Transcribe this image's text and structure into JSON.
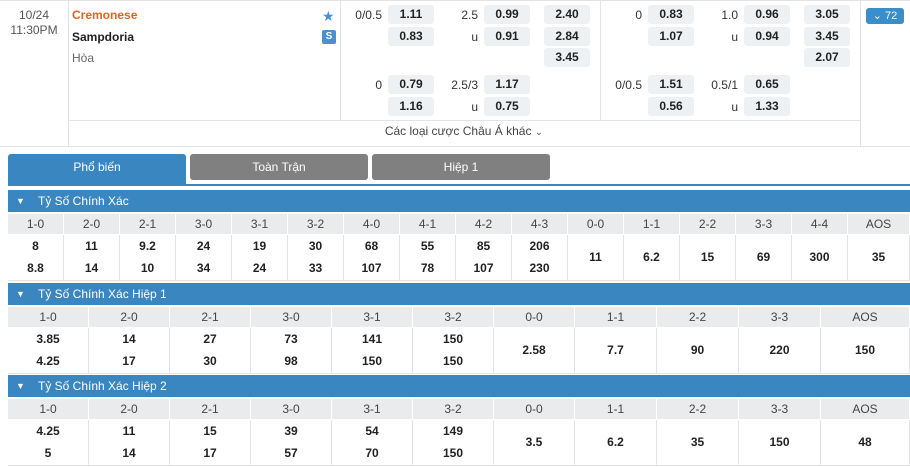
{
  "match": {
    "date": "10/24",
    "time": "11:30PM",
    "home": "Cremonese",
    "away": "Sampdoria",
    "draw_label": "Hòa",
    "more_count": "72",
    "more_arrow": "⌄",
    "star_icon": "★",
    "s_badge": "S"
  },
  "odds_ft": {
    "row1": {
      "hcap": "0/0.5",
      "h1": "1.11",
      "ou": "2.5",
      "o1": "0.99",
      "x1": "2.40"
    },
    "row2": {
      "h2": "0.83",
      "ou_u": "u",
      "o2": "0.91",
      "x2": "2.84"
    },
    "row3": {
      "x3": "3.45"
    },
    "row4": {
      "hcap": "0",
      "h1": "0.79",
      "ou": "2.5/3",
      "o1": "1.17"
    },
    "row5": {
      "h2": "1.16",
      "ou_u": "u",
      "o2": "0.75"
    }
  },
  "odds_ht": {
    "row1": {
      "hcap": "0",
      "h1": "0.83",
      "ou": "1.0",
      "o1": "0.96",
      "x1": "3.05"
    },
    "row2": {
      "h2": "1.07",
      "ou_u": "u",
      "o2": "0.94",
      "x2": "3.45"
    },
    "row3": {
      "x3": "2.07"
    },
    "row4": {
      "hcap": "0/0.5",
      "h1": "1.51",
      "ou": "0.5/1",
      "o1": "0.65"
    },
    "row5": {
      "h2": "0.56",
      "ou_u": "u",
      "o2": "1.33"
    }
  },
  "other_bets": "Các loại cược Châu Á khác",
  "tabs": [
    "Phổ biến",
    "Toàn Trận",
    "Hiệp 1"
  ],
  "sections": [
    {
      "title": "Tỷ Số Chính Xác",
      "headers": [
        "1-0",
        "2-0",
        "2-1",
        "3-0",
        "3-1",
        "3-2",
        "4-0",
        "4-1",
        "4-2",
        "4-3",
        "0-0",
        "1-1",
        "2-2",
        "3-3",
        "4-4",
        "AOS"
      ],
      "top": [
        "8",
        "11",
        "9.2",
        "24",
        "19",
        "30",
        "68",
        "55",
        "85",
        "206",
        "11",
        "6.2",
        "15",
        "69",
        "300",
        "35"
      ],
      "bottom": [
        "8.8",
        "14",
        "10",
        "34",
        "24",
        "33",
        "107",
        "78",
        "107",
        "230",
        "",
        "",
        "",
        "",
        "",
        ""
      ]
    },
    {
      "title": "Tỷ Số Chính Xác Hiệp 1",
      "headers": [
        "1-0",
        "2-0",
        "2-1",
        "3-0",
        "3-1",
        "3-2",
        "0-0",
        "1-1",
        "2-2",
        "3-3",
        "AOS"
      ],
      "top": [
        "3.85",
        "14",
        "27",
        "73",
        "141",
        "150",
        "2.58",
        "7.7",
        "90",
        "220",
        "150"
      ],
      "bottom": [
        "4.25",
        "17",
        "30",
        "98",
        "150",
        "150",
        "",
        "",
        "",
        "",
        ""
      ]
    },
    {
      "title": "Tỷ Số Chính Xác Hiệp 2",
      "headers": [
        "1-0",
        "2-0",
        "2-1",
        "3-0",
        "3-1",
        "3-2",
        "0-0",
        "1-1",
        "2-2",
        "3-3",
        "AOS"
      ],
      "top": [
        "4.25",
        "11",
        "15",
        "39",
        "54",
        "149",
        "3.5",
        "6.2",
        "35",
        "150",
        "48"
      ],
      "bottom": [
        "5",
        "14",
        "17",
        "57",
        "70",
        "150",
        "",
        "",
        "",
        "",
        ""
      ]
    }
  ]
}
